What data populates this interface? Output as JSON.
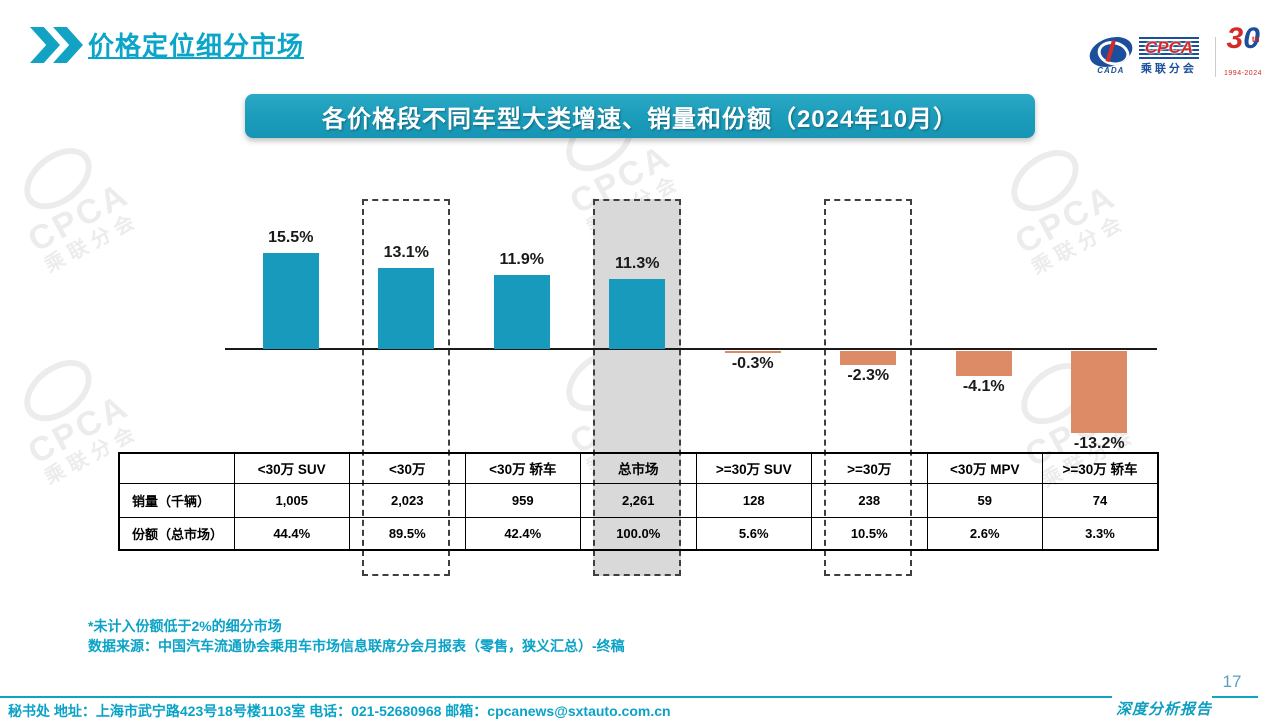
{
  "header": {
    "title": "价格定位细分市场"
  },
  "logo": {
    "cada_label": "CADA",
    "cpca_label": "CPCA",
    "cpca_cn": "乘联分会",
    "anniversary_3": "3",
    "anniversary_0": "0",
    "anniversary_th": "th",
    "anniversary_years": "1994-2024"
  },
  "banner": {
    "title": "各价格段不同车型大类增速、销量和份额（2024年10月）"
  },
  "chart_data": {
    "type": "bar",
    "title": "各价格段不同车型大类增速、销量和份额（2024年10月）",
    "categories": [
      "<30万 SUV",
      "<30万",
      "<30万 轿车",
      "总市场",
      ">=30万 SUV",
      ">=30万",
      "<30万 MPV",
      ">=30万 轿车"
    ],
    "series": [
      {
        "name": "增速",
        "unit": "%",
        "values": [
          15.5,
          13.1,
          11.9,
          11.3,
          -0.3,
          -2.3,
          -4.1,
          -13.2
        ],
        "labels": [
          "15.5%",
          "13.1%",
          "11.9%",
          "11.3%",
          "-0.3%",
          "-2.3%",
          "-4.1%",
          "-13.2%"
        ]
      },
      {
        "name": "销量（千辆）",
        "values": [
          "1,005",
          "2,023",
          "959",
          "2,261",
          "128",
          "238",
          "59",
          "74"
        ]
      },
      {
        "name": "份额（总市场）",
        "values": [
          "44.4%",
          "89.5%",
          "42.4%",
          "100.0%",
          "5.6%",
          "10.5%",
          "2.6%",
          "3.3%"
        ]
      }
    ],
    "highlight_dashed_categories": [
      "<30万",
      "总市场",
      ">=30万"
    ],
    "highlight_filled_categories": [
      "总市场"
    ],
    "ylim": [
      -15,
      17
    ],
    "grid": false,
    "legend": "none",
    "colors": {
      "positive_bar": "#189abd",
      "negative_bar": "#dd8a67",
      "highlight_fill": "#d9d9d9",
      "dashed_border": "#3f3f3f"
    }
  },
  "notes": {
    "line1": "*未计入份额低于2%的细分市场",
    "line2": "数据来源：中国汽车流通协会乘用车市场信息联席分会月报表（零售，狭义汇总）-终稿"
  },
  "footer": {
    "contact_line": "秘书处  地址：上海市武宁路423号18号楼1103室  电话：021-52680968   邮箱：cpcanews@sxtauto.com.cn",
    "report_label": "深度分析报告",
    "page_number": "17"
  },
  "watermark": {
    "line1": "CPCA",
    "line2": "乘联分会"
  }
}
